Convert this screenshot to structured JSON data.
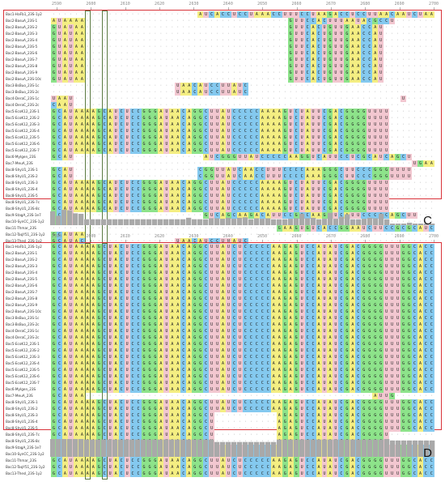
{
  "panel_c": {
    "letter": "C",
    "ruler": [
      "2590",
      "2600",
      "2610",
      "2620",
      "2630",
      "2640",
      "2650",
      "2660",
      "2670",
      "2680",
      "2690",
      "2700"
    ],
    "rows": [
      {
        "name": "Bac1-HaFb1_23S-1y2",
        "seq": "..........................AUCACCUCCUAAACCUUUCCUAAGACCUCCUUAACAAUCUAAUCCCCCAACCUUACAUUCCU"
      },
      {
        "name": "Bac2-BasuA_23S-1",
        "seq": "AUAAAA....................................GUUCCACUUUAAUACGCCU........AUUGCAGUUAUUC"
      },
      {
        "name": "Bac2-BasuA_23S-2",
        "seq": "GUAUAA....................................GUUCACUGUUGAACCAU............UUGCAGUUAGCU"
      },
      {
        "name": "Bac2-BasuA_23S-3",
        "seq": "GUAUAA....................................GUUCACUGUUGAACCAU............UUGCAGUUAGCU"
      },
      {
        "name": "Bac2-BasuA_23S-4",
        "seq": "GUAUAA....................................GUUCACUGUUGAACCAU............UUGCAGUUAGCU"
      },
      {
        "name": "Bac2-BasuA_23S-5",
        "seq": "GUAUAA....................................GUUCACUGUUGAACCAU............UUGCAGUUAGCU"
      },
      {
        "name": "Bac2-BasuA_23S-6",
        "seq": "GUAUAA....................................GUUCACUGUUGAACCAU............UUGCAGUUAGCU"
      },
      {
        "name": "Bac2-BasuA_23S-7",
        "seq": "GUAUAA....................................GUUCACUGUUGAACCAU............UUGCAGUUAGCU"
      },
      {
        "name": "Bac2-BasuA_23S-8",
        "seq": "GUAUAA....................................GUUCACUGUUGAACCAU............UUGCAGUUAGCU"
      },
      {
        "name": "Bac2-BasuA_23S-9",
        "seq": "GUAUAA....................................GUUCACUGUUGAACCAU............UUGCAGUUAGCU"
      },
      {
        "name": "Bac2-BasuA_23S-10c",
        "seq": "GUAUAA....................................GUUCACUGUUGAACCAU............UUGCAGUUAGCU"
      },
      {
        "name": "Bac3-BsBuo_23S-1c",
        "seq": "......................UAACAUCCUUAUC..................................................."
      },
      {
        "name": "Bac3-BsBuo_23S-2c",
        "seq": "......................UAACAUCCUUAUC..................................................."
      },
      {
        "name": "Bac4-DeraC_23S-1c",
        "seq": "UAAU..........................................................U........................"
      },
      {
        "name": "Bac4-DeraC_23S-2c",
        "seq": "CAAU...................................................................................."
      },
      {
        "name": "Bac5-EcoK12_23S-1",
        "seq": "GCAUAAAAGCAUCUCCGGGAUAACAGGCUUAUCCCCCAAAAGUCUAUUCGACGGGGUUUU.............................."
      },
      {
        "name": "Bac5-EcoK12_23S-2",
        "seq": "GCAUAAAAGCAUCUCCGGGAUAACAGGCUUAUCCCCCAAAAGUCUAUUCGACGGGGUUUU.............................."
      },
      {
        "name": "Bac5-EcoK12_23S-3",
        "seq": "GCAUAAAAGCAUCUCCGGGAUAACAGGCUUAUCCCCCAAAAGUCUAUUCGACGGGGUUUU.............................."
      },
      {
        "name": "Bac5-EcoK12_23S-4",
        "seq": "GCAUAAAAGCAUCUCCGGGAUAACAGGCUUAUCCCCCAAAAGUCUAUUCGACGGGGUUUU.............................."
      },
      {
        "name": "Bac5-EcoK12_23S-5",
        "seq": "GCAUAAAAGCAUCUCCGGGAUAACAGGCUUAUCCCCCAAAAGUCUAUUCGACGGGGUUUU.............................."
      },
      {
        "name": "Bac5-EcoK12_23S-6",
        "seq": "GCAUAAAAGCAUCUCCGGGAUAACAGGCUUAUCCCCCAAAAGUCUAUUCGACGGGGUUUU.............................."
      },
      {
        "name": "Bac5-EcoK12_23S-7",
        "seq": "GCAUAAAAGCAUCUCCGGGAUAACAGGCUUAUCCCCCAAAAGUCUAUUCGACGGGGUUUU.............................."
      },
      {
        "name": "Bac6-MyIgen_23S",
        "seq": "GCAU.......................AUCGGGUUAUCCCCCAAGGUCAUUCCUCGCAUCAGCU......................."
      },
      {
        "name": "Bac7-MeuA_23S",
        "seq": "................................................................UGAAG.................."
      },
      {
        "name": "Bac8-ShyU1_23S-1",
        "seq": "GCAU......................CGGUUAUCAACCUUUCCCCAAAGGGCUUCCCGGGUUUU......................."
      },
      {
        "name": "Bac8-ShyU1_23S-2",
        "seq": "GCAU......................CGGUUAUCAACCUUUCCCCAAAGGGCUUCCCGGGUUUU......................."
      },
      {
        "name": "Bac8-ShyU1_23S-3",
        "seq": "GCAUAAAAGCAUCUCCGGGAUAACAGGCUUAUCCCCCAAAAGUCUAUUCGACGGGGUUUU.............................."
      },
      {
        "name": "Bac8-ShyU1_23S-4",
        "seq": "GCAUAAAAGCAUCUCCGGGAUAACAGGCUUAUCCCCCAAAAGUCUAUUCGACGGGGUUUU.............................."
      },
      {
        "name": "Bac8-ShyU1_23S-5",
        "seq": "GCAUAAAAGCAUCUCCGGGAUAACAGGCUUAUCCCCCAAAAGUCUAUUCGACGGGGUUUU.............................."
      },
      {
        "name": "Bac8-ShyU1_23S-7c",
        "seq": "GCAUAAAAGCAUCUCCGGGAUAACAGGCUUAUCCCCCAAAAGUCUAUUCGACGGGGUUUU.............................."
      },
      {
        "name": "Bac8-ShyU1_23S-8c",
        "seq": "GCAUAAAAGCAUCUCCGGGAUAACAGGCUUAUCCCCCAAAAGUCUAUUCGACGGGGUUUU.............................."
      },
      {
        "name": "Bac9-StagA_23S-1e7",
        "seq": "GCAU.......................GUCAGCAAGACAUUCCGCCAAGGUCAUUCCCCCAGCUU......................"
      },
      {
        "name": "Bac10-SynCC_23S-1y2",
        "seq": "GCAU...................................................................................."
      },
      {
        "name": "Bac11-Thmar_23S",
        "seq": "........................................GAAGUGUCACCGGAAUCUUCCGCGCAUCACCACCUCGUU........"
      },
      {
        "name": "Bac12-TaqY51_23S-1y2",
        "seq": "GCAUAA..................................................................................."
      },
      {
        "name": "Bac13-ThesI_23S-1y2",
        "seq": "GCAUAC................UAACAUCCUUAUC......................................................"
      }
    ]
  },
  "panel_d": {
    "letter": "D",
    "ruler": [
      "2590",
      "2600",
      "2610",
      "2620",
      "2630",
      "2640",
      "2650",
      "2660",
      "2670",
      "2680",
      "2690",
      "2700"
    ],
    "rows": [
      {
        "name": "Bac1-HaFb1_23S-1y2",
        "seq": "GCAUAAAAGCUACUCCGGGAUAACAGGCUUAUCUCCCCCAAGAGUCCAUAUCGACGGGGUUUGGCACCUCGAUGUCGGCUCAUCGCA"
      },
      {
        "name": "Bac2-BasuA_23S-1",
        "seq": "GCAUAAAAGCUACUCCGGGAUAACAGGCUUAUCUCCCCCAAGAGUCCAUAUCGACGGGGUUUGGCACCUCGAUGUCGGCUCAUCGCA"
      },
      {
        "name": "Bac2-BasuA_23S-2",
        "seq": "GCAUAAAAGCUACUCCGGGAUAACAGGCUUAUCUCCCCCAAGAGUCCAUAUCGACGGGGUUUGGCACCUCGAUGUCGGCUCAUCGCA"
      },
      {
        "name": "Bac2-BasuA_23S-3",
        "seq": "GCAUAAAAGCUACUCCGGGAUAACAGGCUUAUCUCCCCCAAGAGUCCAUAUCGACGGGGUUUGGCACCUCGAUGUCGGCUCAUCGCA"
      },
      {
        "name": "Bac2-BasuA_23S-4",
        "seq": "GCAUAAAAGCUACUCCGGGAUAACAGGCUUAUCUCCCCCAAGAGUCCAUAUCGACGGGGUUUGGCACCUCGAUGUCGGCUCAUCGCA"
      },
      {
        "name": "Bac2-BasuA_23S-5",
        "seq": "GCAUAAAAGCUACUCCGGGAUAACAGGCUUAUCUCCCCCAAGAGUCCAUAUCGACGGGGUUUGGCACCUCGAUGUCGGCUCAUCGCA"
      },
      {
        "name": "Bac2-BasuA_23S-6",
        "seq": "GCAUAAAAGCUACUCCGGGAUAACAGGCUUAUCUCCCCCAAGAGUCCAUAUCGACGGGGUUUGGCACCUCGAUGUCGGCUCAUCGCA"
      },
      {
        "name": "Bac2-BasuA_23S-7",
        "seq": "GCAUAAAAGCUACUCCGGGAUAACAGGCUUAUCUCCCCCAAGAGUCCAUAUCGACGGGGUUUGGCACCUCGAUGUCGGCUCAUCGCA"
      },
      {
        "name": "Bac2-BasuA_23S-8",
        "seq": "GCAUAAAAGCUACUCCGGGAUAACAGGCUUAUCUCCCCCAAGAGUCCAUAUCGACGGGGUUUGGCACCUCGAUGUCGGCUCAUCGCA"
      },
      {
        "name": "Bac2-BasuA_23S-9",
        "seq": "GCAUAAAAGCUACUCCGGGAUAACAGGCUUAUCUCCCCCAAGAGUCCAUAUCGACGGGGUUUGGCACCUCGAUGUCGGCUCAUCGCA"
      },
      {
        "name": "Bac2-BasuA_23S-10c",
        "seq": "GCAUAAAAGCUACUCCGGGAUAACAGGCUUAUCUCCCCCAAGAGUCCAUAUCGACGGGGUUUGGCACCUCGAUGUCGGCUCAUCGCA"
      },
      {
        "name": "Bac3-BsBuo_23S-1c",
        "seq": "GCAUAAAAGCUACUCCGGGAUAACAGGCUUAUCUCCCCCAAGAGUCCAUAUCGACGGGGUUUGGCACCUCGAUGUCGGCUCAUCGCA"
      },
      {
        "name": "Bac3-BsBuo_23S-2c",
        "seq": "GCAUAAAAGCUACUCCGGGAUAACAGGCUUAUCUCCCCCAAGAGUCCAUAUCGACGGGGUUUGGCACCUCGAUGUCGGCUCAUCGCA"
      },
      {
        "name": "Bac4-DeraC_23S-1c",
        "seq": "GCAUAAAAGCUACUCCGGGAUAACAGGCUUAUCUCCCCCAAGAGUCCAUAUCGACGGGGUUUGGCACCUCGAUGUCGGCUCAUCGCA"
      },
      {
        "name": "Bac4-DeraC_23S-2c",
        "seq": "GCAUAAAAGCUACUCCGGGAUAACAGGCUUAUCUCCCCCAAGAGUCCAUAUCGACGGGGUUUGGCACCUCGAUGUCGGCUCAUCGCA"
      },
      {
        "name": "Bac5-EcoK12_23S-1",
        "seq": "GCAUAAAAGCUACUCCGGGAUAACAGGCUUAUCUCCCCCAAGAGUCCAUAUCGACGGGGUUUGGCACCUCGAUGUCGGCUCAUCGCA"
      },
      {
        "name": "Bac5-EcoK12_23S-2",
        "seq": "GCAUAAAAGCUACUCCGGGAUAACAGGCUUAUCUCCCCCAAGAGUCCAUAUCGACGGGGUUUGGCACCUCGAUGUCGGCUCAUCGCA"
      },
      {
        "name": "Bac5-EcoK12_23S-3",
        "seq": "GCAUAAAAGCUACUCCGGGAUAACAGGCUUAUCUCCCCCAAGAGUCCAUAUCGACGGGGUUUGGCACCUCGAUGUCGGCUCAUCGCA"
      },
      {
        "name": "Bac5-EcoK12_23S-4",
        "seq": "GCAUAAAAGCUACUCCGGGAUAACAGGCUUAUCUCCCCCAAGAGUCCAUAUCGACGGGGUUUGGCACCUCGAUGUCGGCUCAUCGCA"
      },
      {
        "name": "Bac5-EcoK12_23S-5",
        "seq": "GCAUAAAAGCUACUCCGGGAUAACAGGCUUAUCUCCCCCAAGAGUCCAUAUCGACGGGGUUUGGCACCUCGAUGUCGGCUCAUCGCA"
      },
      {
        "name": "Bac5-EcoK12_23S-6",
        "seq": "GCAUAAAAGCUACUCCGGGAUAACAGGCUUAUCUCCCCCAAGAGUCCAUAUCGACGGGGUUUGGCACCUCGAUGUCGGCUCAUCGCA"
      },
      {
        "name": "Bac5-EcoK12_23S-7",
        "seq": "GCAUAAAAGCUACUCCGGGAUAACAGGCUUAUCUCCCCCAAGAGUCCAUAUCGACGGGGUUUGGCACCUCGAUGUCGGCUCAUCGCA"
      },
      {
        "name": "Bac6-MyIgen_23S",
        "seq": "GCAUAAAAGCUACUCCGGGAUAACAGGCUUAUCUCCCCCAAGAGUCCAUAUCGACGGGGUUUGGCACCUCGAUGUCGGCUCAUCGCA"
      },
      {
        "name": "Bac7-MeuA_23S",
        "seq": "GCAUAA...................................................AUUG..........................."
      },
      {
        "name": "Bac8-ShyU1_23S-1",
        "seq": "GCAUAAAAGCUACUCCGGGAUAACAGGCUUAUCUCCCCCAAGAGUCCAUAUCGACGGGGUUUGGCACCUCGAUGUCGGCUCAUCGCA"
      },
      {
        "name": "Bac8-ShyU1_23S-2",
        "seq": "GCAUAAAAGCUACUCCGGGAUAACAGGCUUAUCUCCCCCAAGAGUCCAUAUCGACGGGGUUUGGCACCUCGAUGUCGGCUCAUCGCA"
      },
      {
        "name": "Bac8-ShyU1_23S-3",
        "seq": "GCAUAAAAGCUACUCCGGGAUAACAGGCU...........AGAGUCCAUAUCGACGGGGUUUGGCACCUCGAUGUCGGCUCAUCGCA"
      },
      {
        "name": "Bac8-ShyU1_23S-4",
        "seq": "GCAUAAAAGCUACUCCGGGAUAACAGGCU...........AGAGUCCAUAUCGACGGGGUUUGGCACCUCGAUGUCGGCUCAUCGCA"
      },
      {
        "name": "Bac8-ShyU1_23S-5",
        "seq": "GCAUAAAAGCUACUCCGGGAUAACAGGCU...........AGAGUCCAUAUCGACGGGGUUUGGCACCUCGAUGUCGGCUCAUCGCA"
      },
      {
        "name": "Bac8-ShyU1_23S-7c",
        "seq": "GCAUAAAAGCUACUCCGGGAUAACAGGCU...........AGAGUCCAUAUCGACGGGGU......................."
      },
      {
        "name": "Bac8-ShyU1_23S-8c",
        "seq": "GCAUAAAAGCUACUCCGGGAUAACAGGCU...........AGAGUCCAUAUCGACGGGGU......................."
      },
      {
        "name": "Bac9-StagA_23S-1e7",
        "seq": "GCAUAAAAGCUACUCCGGGAUAACAGGCUUAUCUCCCCCAAGAGUCCAUAUCGACGGGGUUUGGCACCUCGAUGUCGGCUCAUCGCA"
      },
      {
        "name": "Bac10-SynCC_23S-1y2",
        "seq": "GCAUAAAAGCUACUCCGGGAUAACAGGCUUAUCUCCCCCAAGAGUCCAUAUCGACGGGGUUUGGCACCUCGAUGUCGGCUCAUCGCA"
      },
      {
        "name": "Bac11-Thmar_23S",
        "seq": "GCAUAAAAGCUACUCCGGGAUAACAGGCUUAUCUCCCCCAAGAGUCCAUAUCGACGGGGUUUGGCACCUCGAUGUCGGCUCAUCGCA"
      },
      {
        "name": "Bac12-TaqY51_23S-1y2",
        "seq": "GCAUAAAAGCUACUCCGGGAUAACAGGCUUAUCUCCCCCAAGAGUCCAUAUCGACGGGGUUUGGCACCUCGAUGUCGGCUCAUCGCA"
      },
      {
        "name": "Bac13-ThesI_23S-1y2",
        "seq": "GCAUAAAAGCUACUCCGGGAUAACAGGCUUAUCUCCCCCAAGAGUCCAUAUCGACGGGGUUUGGCACCUCGAUGUCGGCUCAUCGCA"
      }
    ]
  },
  "colors": {
    "A": "#f4ee82",
    "C": "#84c9ef",
    "G": "#8de38a",
    "U": "#f2c7d0",
    "frame": "#d9333a",
    "highlight_box": "#5b7a42",
    "conservation": "#a9a9a9"
  }
}
